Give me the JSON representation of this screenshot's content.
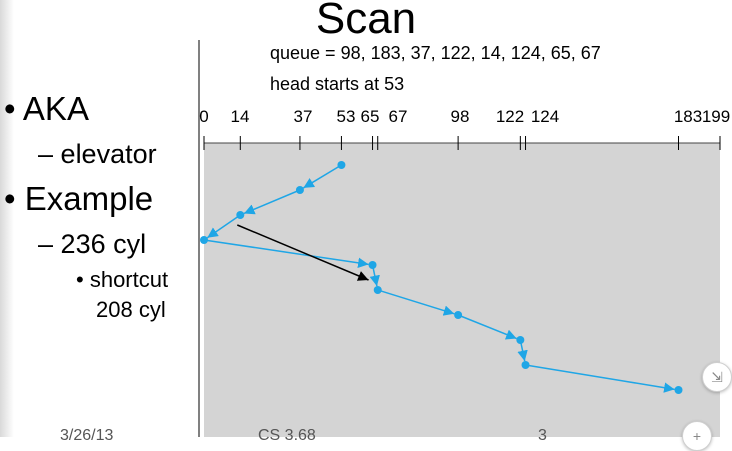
{
  "slide": {
    "title": "Scan",
    "bullets": {
      "aka": "AKA",
      "elevator": "elevator",
      "example": "Example",
      "cyl236": "236 cyl",
      "shortcut": "shortcut",
      "cyl208": "208 cyl"
    },
    "bullet_glyphs": {
      "level1": "•",
      "level2": "–",
      "level3": "•"
    },
    "queue_line": "queue = 98, 183, 37, 122, 14, 124, 65, 67",
    "head_line": "head starts at 53",
    "footer": {
      "left": "3/26/13",
      "middle": "CS 3.68",
      "right": "3"
    }
  },
  "diagram": {
    "ticks": [
      0,
      14,
      37,
      53,
      65,
      67,
      98,
      122,
      124,
      183,
      199
    ],
    "tick_labels": [
      "0",
      "14",
      "37",
      "53",
      "65",
      "67",
      "98",
      "122",
      "124",
      "183",
      "199"
    ],
    "scan_path": [
      53,
      37,
      14,
      0,
      65,
      67,
      98,
      122,
      124,
      183
    ],
    "shortcut_path": [
      14,
      65
    ],
    "colors": {
      "panel": "#d4d4d4",
      "path": "#1fa6e6",
      "shortcut": "#000000"
    }
  },
  "controls": {
    "shrink_icon": "shrink-arrows-icon",
    "zoom_icon": "plus-icon"
  }
}
